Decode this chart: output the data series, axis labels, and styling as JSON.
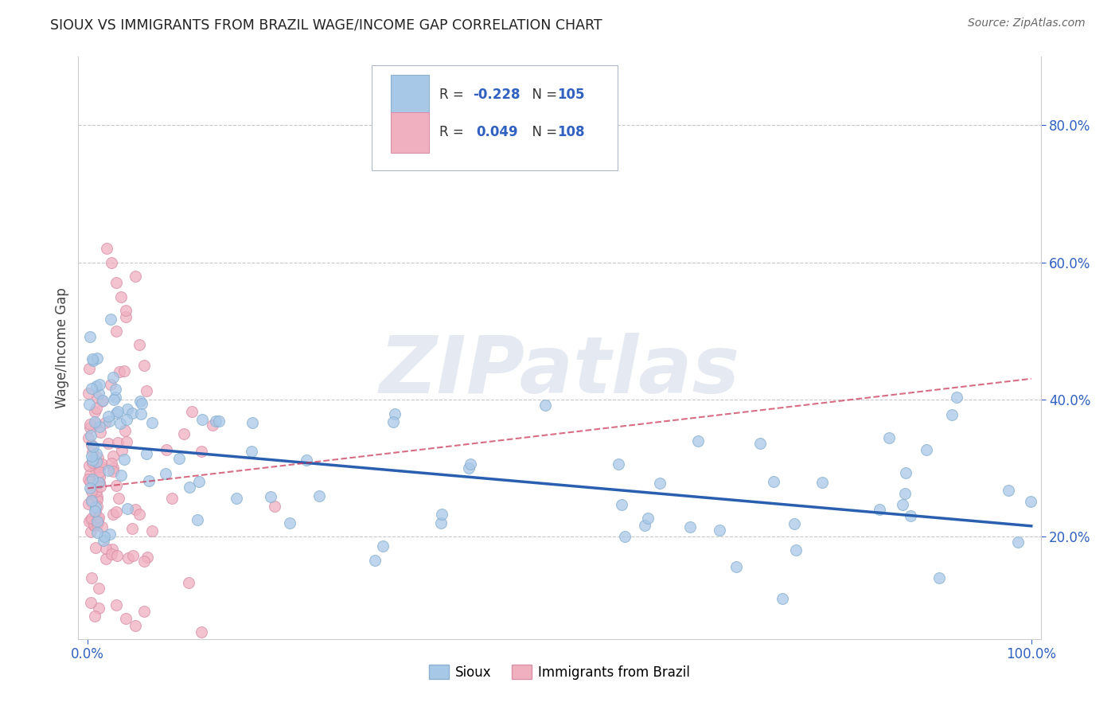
{
  "title": "SIOUX VS IMMIGRANTS FROM BRAZIL WAGE/INCOME GAP CORRELATION CHART",
  "source": "Source: ZipAtlas.com",
  "ylabel": "Wage/Income Gap",
  "xlim": [
    -0.01,
    1.01
  ],
  "ylim": [
    0.05,
    0.9
  ],
  "x_ticks": [
    0.0,
    1.0
  ],
  "x_tick_labels": [
    "0.0%",
    "100.0%"
  ],
  "y_ticks": [
    0.2,
    0.4,
    0.6,
    0.8
  ],
  "y_tick_labels": [
    "20.0%",
    "40.0%",
    "60.0%",
    "80.0%"
  ],
  "grid_color": "#c8c8c8",
  "background_color": "#ffffff",
  "watermark": "ZIPatlas",
  "sioux_color": "#a8c8e8",
  "sioux_edge_color": "#8ab0d0",
  "brazil_color": "#f0b0c0",
  "brazil_edge_color": "#d890a8",
  "sioux_R": -0.228,
  "sioux_N": 105,
  "brazil_R": 0.049,
  "brazil_N": 108,
  "sioux_line_color": "#2a5fb0",
  "brazil_line_color": "#c83050",
  "legend_color_blue": "#3060c0",
  "legend_color_pink": "#e05070",
  "tick_color": "#3060c0",
  "sioux_line_y0": 0.335,
  "sioux_line_y1": 0.215,
  "brazil_line_y0": 0.27,
  "brazil_line_y1": 0.43
}
